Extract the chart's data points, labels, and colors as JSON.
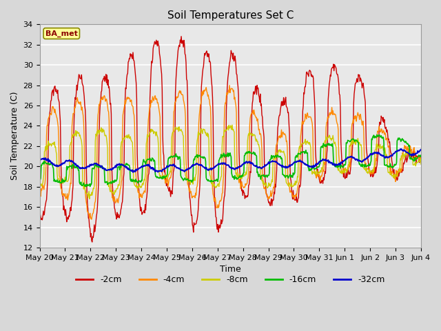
{
  "title": "Soil Temperatures Set C",
  "xlabel": "Time",
  "ylabel": "Soil Temperature (C)",
  "ylim": [
    12,
    34
  ],
  "yticks": [
    12,
    14,
    16,
    18,
    20,
    22,
    24,
    26,
    28,
    30,
    32,
    34
  ],
  "label_box_text": "BA_met",
  "label_box_color": "#ffff99",
  "label_box_text_color": "#8b0000",
  "background_color": "#d8d8d8",
  "plot_bg_color": "#e8e8e8",
  "grid_color": "#ffffff",
  "series_labels": [
    "-2cm",
    "-4cm",
    "-8cm",
    "-16cm",
    "-32cm"
  ],
  "series_colors": [
    "#cc0000",
    "#ff8800",
    "#cccc00",
    "#00bb00",
    "#0000cc"
  ],
  "date_labels": [
    "May 20",
    "May 21",
    "May 22",
    "May 23",
    "May 24",
    "May 25",
    "May 26",
    "May 27",
    "May 28",
    "May 29",
    "May 30",
    "May 31",
    "Jun 1",
    "Jun 2",
    "Jun 3",
    "Jun 4"
  ]
}
